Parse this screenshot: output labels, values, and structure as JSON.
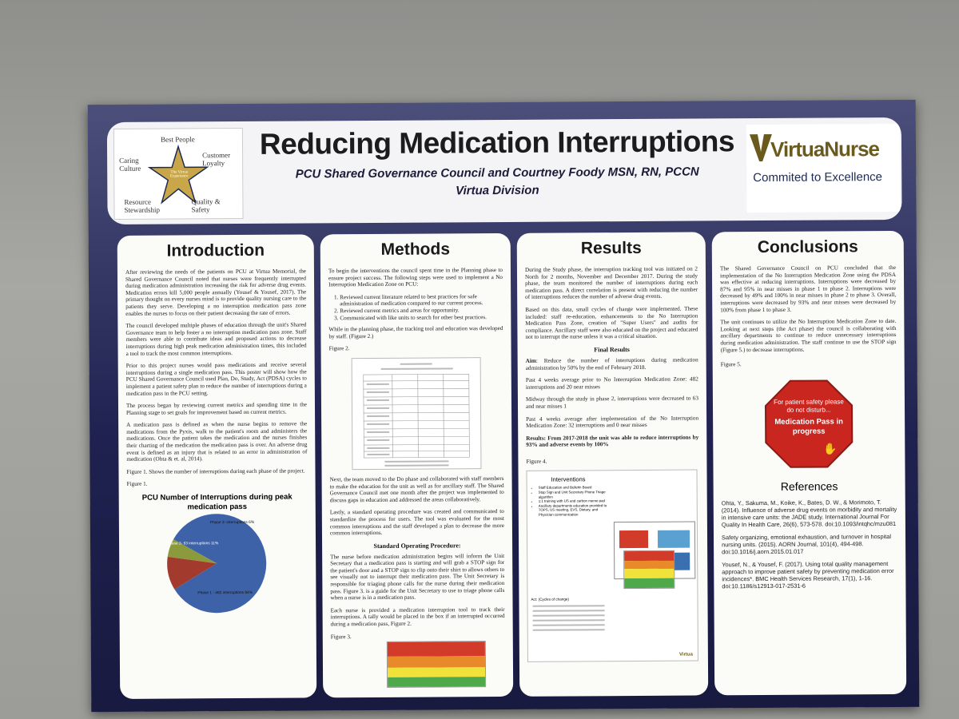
{
  "header": {
    "title": "Reducing Medication Interruptions",
    "subtitle": "PCU Shared Governance Council and Courtney Foody MSN, RN, PCCN",
    "division": "Virtua Division",
    "logo": {
      "top": "Best People",
      "left": "Caring Culture",
      "right": "Customer Loyalty",
      "bottom_left": "Resource Stewardship",
      "bottom_right": "Quality & Safety",
      "center": "The Virtua Experience"
    },
    "brand_name": "VirtuaNurse",
    "brand_tagline": "Commited to Excellence"
  },
  "introduction": {
    "heading": "Introduction",
    "p1": "After reviewing the needs of the patients on PCU at Virtua Memorial, the Shared Governance Council noted that nurses were frequently interrupted during medication administration increasing the risk for adverse drug events. Medication errors kill 5,000 people annually (Yousef & Yousef, 2017). The primary thought on every nurses mind is to provide quality nursing care to the patients they serve. Developing a no interruption medication pass zone enables the nurses to focus on their patient decreasing the rate of errors.",
    "p2": "The council developed multiple phases of education through the unit's Shared Governance team to help foster a no interruption medication pass zone. Staff members were able to contribute ideas and proposed actions to decrease interruptions during high peak medication administration times, this included a tool to track the most common interruptions.",
    "p3": "Prior to this project nurses would pass medications and receive several interruptions during a single medication pass. This poster will show how the PCU Shared Governance Council used Plan, Do, Study, Act (PDSA) cycles to implement a patient safety plan to reduce the number of interruptions during a medication pass in the PCU setting.",
    "p4": "The process began by reviewing current metrics and spending time in the Planning stage to set goals for improvement based on current metrics.",
    "p5": "A medication pass is defined as when the nurse begins to remove the medications from the Pyxis, walk to the patient's room and administers the medications. Once the patient takes the medication and the nurses finishes their charting of the medication the medication pass is over. An adverse drug event is defined as an injury that is related to an error in administration of medication (Ohta & et. al, 2014).",
    "p6": "Figure 1. Shows the number of interruptions during each phase of the project.",
    "fig_label": "Figure 1."
  },
  "chart_data": {
    "type": "pie",
    "title": "PCU Number of Interruptions during peak medication pass",
    "categories": [
      "Phase 1 - 482 interruptions 84%",
      "Phase 2- 63 interruptions 11%",
      "Phase 3- interruptions 6%"
    ],
    "values": [
      84,
      11,
      6
    ],
    "colors": [
      "#3e62a8",
      "#a33a2e",
      "#8a9a3c"
    ]
  },
  "methods": {
    "heading": "Methods",
    "p1": "To begin the interventions the council spent time in the Planning phase to ensure project success. The following steps were used to implement a No Interruption Medication Zone on PCU:",
    "list": [
      "Reviewed current literature related to best practices for safe administration of medication compared to our current process.",
      "Reviewed current metrics and areas for opportunity.",
      "Communicated with like units to search for other best practices."
    ],
    "p2": "While in the planning phase, the tracking tool and education was developed by staff. (Figure 2.)",
    "fig2_label": "Figure 2.",
    "p3": "Next, the team moved to the Do phase and collaborated with staff members to make the education for the unit as well as for ancillary staff. The Shared Governance Council met one month after the project was implemented to discuss gaps in education and addressed the areas collaboratively.",
    "p4": "Lastly, a standard operating procedure was created and communicated to standardize the process for users. The tool was evaluated for the most common interruptions and the staff developed a plan to decrease the more common interruptions.",
    "sop_heading": "Standard Operating Procedure:",
    "p5": "The nurse before medication administration begins will inform the Unit Secretary that a medication pass is starting and will grab a STOP sign for the patient's door and a STOP sign to clip onto their shirt to allows others to see visually not to interrupt their medication pass. The Unit Secretary is responsible for triaging phone calls for the nurse during their medication pass. Figure 3. is a guide for the Unit Secretary to use to triage phone calls when a nurse is in a medication pass.",
    "p6": "Each nurse is provided a medication interruption tool to track their interruptions. A tally would be placed in the box if an interrupted occurred during a medication pass, Figure 2.",
    "fig3_label": "Figure 3."
  },
  "results": {
    "heading": "Results",
    "p1": "During the Study phase, the interruption tracking tool was initiated on 2 North for 2 months, November and December 2017. During the study phase, the team monitored the number of interruptions during each medication pass. A direct correlation is present with reducing the number of interruptions reduces the number of adverse drug events.",
    "p2": "Based on this data, small cycles of change were implemented. These included: staff re-education, enhancements to the No Interruption Medication Pass Zone, creation of \"Super Users\" and audits for compliance. Ancillary staff were also educated on the project and educated not to interrupt the nurse unless it was a critical situation.",
    "final_heading": "Final Results",
    "aim_label": "Aim",
    "aim_text": ": Reduce the number of interruptions during medication administration by 50% by the end of February 2018.",
    "p3": "Past 4 weeks average prior to No Interruption Medication Zone: 482 interruptions and 20 near misses",
    "p4": "Midway through the study in phase 2, interruptions were decreased to 63 and near misses 1",
    "p5": "Past 4 weeks average after implementation of the No Interruption Medication Zone: 32 interruptions and 0 near misses",
    "p6": "Results: From 2017-2018 the unit was able to reduce interruptions by 93% and adverse events by 100%",
    "fig4_label": "Figure 4.",
    "fig4_title": "Interventions",
    "fig4_items": [
      "Staff Education and Bulletin Board",
      "Stop Sign and Unit Secretary Phone Triage algorithm",
      "1:1 training with US and carbon memo pad",
      "Ancillary departments education provided to TOPS, US meeting, EVS, Dietary, and Physician communication"
    ],
    "fig4_act": "Act: (Cycles of change)",
    "fig4_brand": "Virtua"
  },
  "conclusions": {
    "heading": "Conclusions",
    "p1": "The Shared Governance Council on PCU concluded that the implementation of the No Interruption Medication Zone using the PDSA was effective at reducing interruptions. Interruptions were decreased by 87% and 95% in near misses in phase 1 to phase 2. Interruptions were decreased by 49% and 100% in near misses in phase 2 to phase 3. Overall, interruptions were decreased by 93% and near misses were decreased by 100% from phase 1 to phase 3.",
    "p2": "The unit continues to utilize the No Interruption Medication Zone to date. Looking at next steps (the Act phase) the council is collaborating with ancillary departments to continue to reduce unnecessary interruptions during medication administration. The staff continue to use the STOP sign (Figure 5.) to decrease interruptions.",
    "fig5_label": "Figure 5.",
    "stop_line1": "For patient safety please do not disturb...",
    "stop_line2": "Medication Pass in progress",
    "refs_heading": "References",
    "ref1": "Ohta, Y., Sakuma, M., Koike, K., Bates, D. W., & Morimoto, T. (2014). Influence of adverse drug events on morbidity and mortality in intensive care units: the JADE study. International Journal For Quality In Health Care, 26(6), 573-578. doi:10.1093/intqhc/mzu081",
    "ref2": "Safety organizing, emotional exhaustion, and turnover in hospital nursing units. (2015). AORN Journal, 101(4), 494-498. doi:10.1016/j.aorn.2015.01.017",
    "ref3": "Yousef, N., & Yousef, F. (2017). Using total quality management approach to improve patient safety by preventing medication error incidences*. BMC Health Services Research, 17(1), 1-16. doi:10.1186/s12913-017-2531-6"
  }
}
